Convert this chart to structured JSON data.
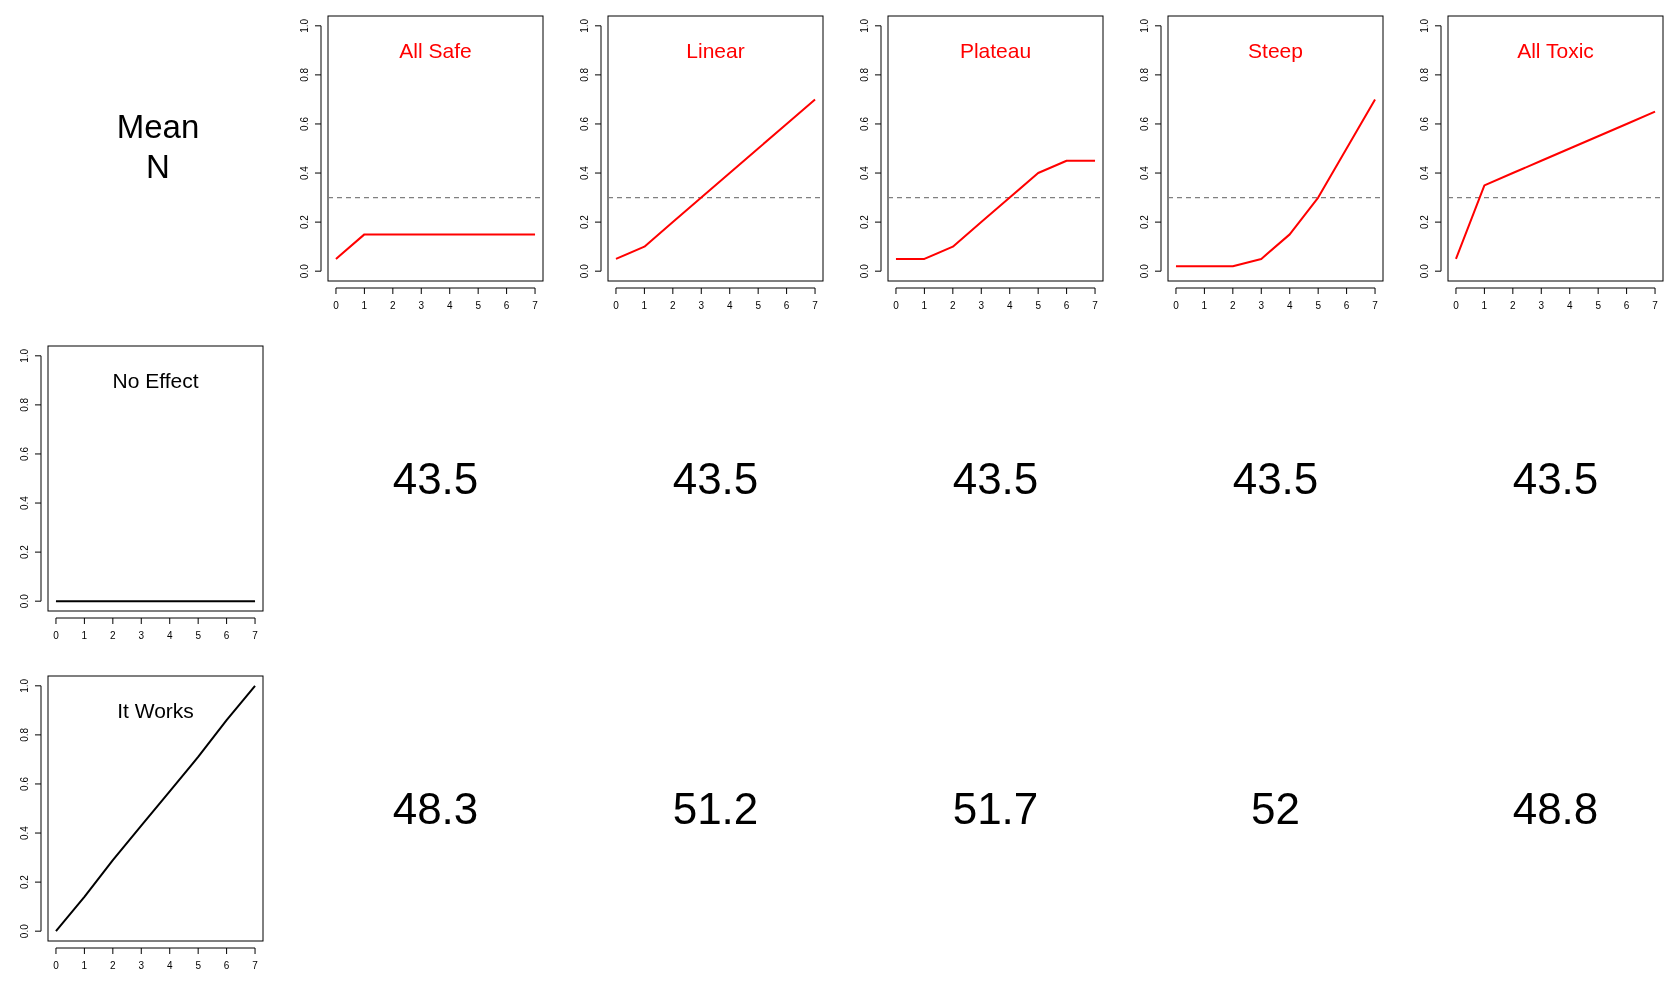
{
  "chart_data": [
    {
      "type": "other",
      "title": "Mean N"
    },
    {
      "type": "heatmap",
      "categories": [
        null,
        null,
        null,
        null,
        null
      ],
      "y_categories": [
        null,
        null
      ],
      "data_labels": true,
      "cells": [
        [
          43.5,
          43.5,
          43.5,
          43.5,
          43.5
        ],
        [
          48.3,
          51.2,
          51.7,
          52,
          48.8
        ]
      ]
    },
    {
      "type": "line",
      "title": "All Safe",
      "x": [
        0,
        1,
        2,
        3,
        4,
        5,
        6,
        7
      ],
      "series": [
        {
          "color": "#ff0000",
          "values": [
            0.05,
            0.15,
            0.15,
            0.15,
            0.15,
            0.15,
            0.15,
            0.15
          ]
        }
      ],
      "xlim": [
        -0.28,
        7.28
      ],
      "ylim": [
        -0.04,
        1.04
      ],
      "xticks": [
        0,
        1,
        2,
        3,
        4,
        5,
        6,
        7
      ],
      "yticks": [
        {
          "value": 0,
          "label": "0.0"
        },
        {
          "value": 0.2,
          "label": "0.2"
        },
        {
          "value": 0.4,
          "label": "0.4"
        },
        {
          "value": 0.6,
          "label": "0.6"
        },
        {
          "value": 0.8,
          "label": "0.8"
        },
        {
          "value": 1,
          "label": "1.0"
        }
      ],
      "ref_lines": [
        {
          "axis": "y",
          "value": 0.3,
          "color": "#808080",
          "line_style": "dashed"
        }
      ],
      "line_style": "solid"
    },
    {
      "type": "line",
      "title": "Linear",
      "x": [
        0,
        1,
        2,
        3,
        4,
        5,
        6,
        7
      ],
      "series": [
        {
          "color": "#ff0000",
          "values": [
            0.05,
            0.1,
            0.2,
            0.3,
            0.4,
            0.5,
            0.6,
            0.7
          ]
        }
      ],
      "xlim": [
        -0.28,
        7.28
      ],
      "ylim": [
        -0.04,
        1.04
      ],
      "xticks": [
        0,
        1,
        2,
        3,
        4,
        5,
        6,
        7
      ],
      "yticks": [
        {
          "value": 0,
          "label": "0.0"
        },
        {
          "value": 0.2,
          "label": "0.2"
        },
        {
          "value": 0.4,
          "label": "0.4"
        },
        {
          "value": 0.6,
          "label": "0.6"
        },
        {
          "value": 0.8,
          "label": "0.8"
        },
        {
          "value": 1,
          "label": "1.0"
        }
      ],
      "ref_lines": [
        {
          "axis": "y",
          "value": 0.3,
          "color": "#808080",
          "line_style": "dashed"
        }
      ],
      "line_style": "solid"
    },
    {
      "type": "line",
      "title": "Plateau",
      "x": [
        0,
        1,
        2,
        3,
        4,
        5,
        6,
        7
      ],
      "series": [
        {
          "color": "#ff0000",
          "values": [
            0.05,
            0.05,
            0.1,
            0.2,
            0.3,
            0.4,
            0.45,
            0.45
          ]
        }
      ],
      "xlim": [
        -0.28,
        7.28
      ],
      "ylim": [
        -0.04,
        1.04
      ],
      "xticks": [
        0,
        1,
        2,
        3,
        4,
        5,
        6,
        7
      ],
      "yticks": [
        {
          "value": 0,
          "label": "0.0"
        },
        {
          "value": 0.2,
          "label": "0.2"
        },
        {
          "value": 0.4,
          "label": "0.4"
        },
        {
          "value": 0.6,
          "label": "0.6"
        },
        {
          "value": 0.8,
          "label": "0.8"
        },
        {
          "value": 1,
          "label": "1.0"
        }
      ],
      "ref_lines": [
        {
          "axis": "y",
          "value": 0.3,
          "color": "#808080",
          "line_style": "dashed"
        }
      ],
      "line_style": "solid"
    },
    {
      "type": "line",
      "title": "Steep",
      "x": [
        0,
        1,
        2,
        3,
        4,
        5,
        6,
        7
      ],
      "series": [
        {
          "color": "#ff0000",
          "values": [
            0.02,
            0.02,
            0.02,
            0.05,
            0.15,
            0.3,
            0.5,
            0.7
          ]
        }
      ],
      "xlim": [
        -0.28,
        7.28
      ],
      "ylim": [
        -0.04,
        1.04
      ],
      "xticks": [
        0,
        1,
        2,
        3,
        4,
        5,
        6,
        7
      ],
      "yticks": [
        {
          "value": 0,
          "label": "0.0"
        },
        {
          "value": 0.2,
          "label": "0.2"
        },
        {
          "value": 0.4,
          "label": "0.4"
        },
        {
          "value": 0.6,
          "label": "0.6"
        },
        {
          "value": 0.8,
          "label": "0.8"
        },
        {
          "value": 1,
          "label": "1.0"
        }
      ],
      "ref_lines": [
        {
          "axis": "y",
          "value": 0.3,
          "color": "#808080",
          "line_style": "dashed"
        }
      ],
      "line_style": "solid"
    },
    {
      "type": "line",
      "title": "All Toxic",
      "x": [
        0,
        1,
        2,
        3,
        4,
        5,
        6,
        7
      ],
      "series": [
        {
          "color": "#ff0000",
          "values": [
            0.05,
            0.35,
            0.4,
            0.45,
            0.5,
            0.55,
            0.6,
            0.65
          ]
        }
      ],
      "xlim": [
        -0.28,
        7.28
      ],
      "ylim": [
        -0.04,
        1.04
      ],
      "xticks": [
        0,
        1,
        2,
        3,
        4,
        5,
        6,
        7
      ],
      "yticks": [
        {
          "value": 0,
          "label": "0.0"
        },
        {
          "value": 0.2,
          "label": "0.2"
        },
        {
          "value": 0.4,
          "label": "0.4"
        },
        {
          "value": 0.6,
          "label": "0.6"
        },
        {
          "value": 0.8,
          "label": "0.8"
        },
        {
          "value": 1,
          "label": "1.0"
        }
      ],
      "ref_lines": [
        {
          "axis": "y",
          "value": 0.3,
          "color": "#808080",
          "line_style": "dashed"
        }
      ],
      "line_style": "solid"
    },
    {
      "type": "line",
      "title": "No Effect",
      "x": [
        0,
        1,
        2,
        3,
        4,
        5,
        6,
        7
      ],
      "series": [
        {
          "color": "#000000",
          "values": [
            0,
            0,
            0,
            0,
            0,
            0,
            0,
            0
          ]
        }
      ],
      "xlim": [
        -0.28,
        7.28
      ],
      "ylim": [
        -0.04,
        1.04
      ],
      "xticks": [
        0,
        1,
        2,
        3,
        4,
        5,
        6,
        7
      ],
      "yticks": [
        {
          "value": 0,
          "label": "0.0"
        },
        {
          "value": 0.2,
          "label": "0.2"
        },
        {
          "value": 0.4,
          "label": "0.4"
        },
        {
          "value": 0.6,
          "label": "0.6"
        },
        {
          "value": 0.8,
          "label": "0.8"
        },
        {
          "value": 1,
          "label": "1.0"
        }
      ],
      "line_style": "solid"
    },
    {
      "type": "line",
      "title": "It Works",
      "x": [
        0,
        1,
        2,
        3,
        4,
        5,
        6,
        7
      ],
      "series": [
        {
          "color": "#000000",
          "values": [
            0,
            0.14,
            0.29,
            0.43,
            0.57,
            0.71,
            0.86,
            1
          ]
        }
      ],
      "xlim": [
        -0.28,
        7.28
      ],
      "ylim": [
        -0.04,
        1.04
      ],
      "xticks": [
        0,
        1,
        2,
        3,
        4,
        5,
        6,
        7
      ],
      "yticks": [
        {
          "value": 0,
          "label": "0.0"
        },
        {
          "value": 0.2,
          "label": "0.2"
        },
        {
          "value": 0.4,
          "label": "0.4"
        },
        {
          "value": 0.6,
          "label": "0.6"
        },
        {
          "value": 0.8,
          "label": "0.8"
        },
        {
          "value": 1,
          "label": "1.0"
        }
      ],
      "line_style": "solid"
    }
  ]
}
